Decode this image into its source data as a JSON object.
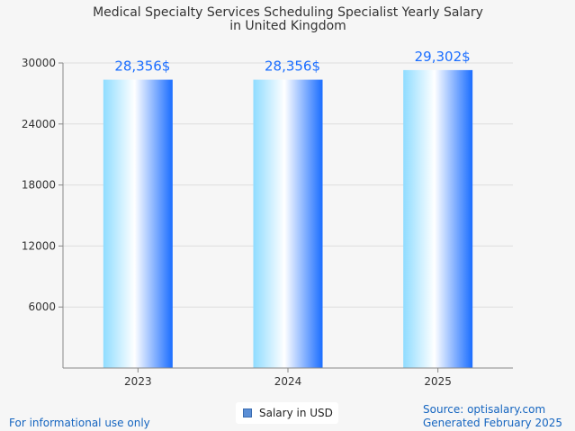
{
  "chart_data": {
    "type": "bar",
    "title": "Medical Specialty Services Scheduling Specialist Yearly Salary",
    "subtitle": "in United Kingdom",
    "categories": [
      "2023",
      "2024",
      "2025"
    ],
    "series": [
      {
        "name": "Salary in USD",
        "values": [
          28356,
          28356,
          29302
        ]
      }
    ],
    "data_labels": [
      "28,356$",
      "28,356$",
      "29,302$"
    ],
    "yticks": [
      "6000",
      "12000",
      "18000",
      "24000",
      "30000"
    ],
    "ylim": [
      0,
      30000
    ],
    "grid": true,
    "legend": "bottom-center"
  },
  "footer": {
    "left": "For informational use only",
    "source": "Source: optisalary.com",
    "generated": "Generated February 2025"
  },
  "colors": {
    "bar_light": "#c9efff",
    "bar_mid": "#ffffff",
    "bar_dark": "#1a6dff",
    "label": "#1a6dff",
    "footer": "#1565c0"
  }
}
